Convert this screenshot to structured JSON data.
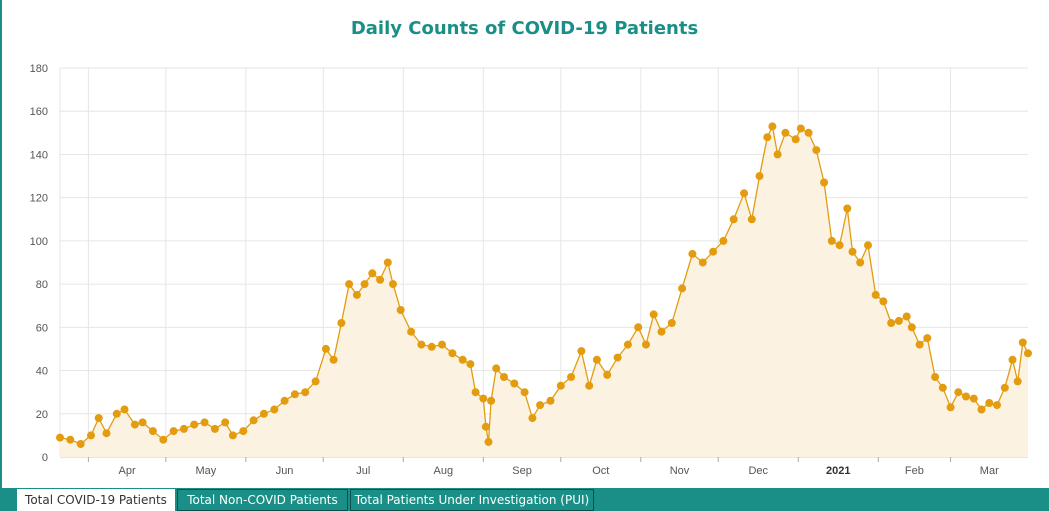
{
  "chart_data": {
    "type": "line",
    "title": "Daily Counts of COVID-19 Patients",
    "ylim": [
      0,
      180
    ],
    "yticks": [
      0,
      20,
      40,
      60,
      80,
      100,
      120,
      140,
      160,
      180
    ],
    "xlim": [
      "2020-03-21",
      "2021-03-31"
    ],
    "month_ticks": [
      {
        "date": "2020-04-01",
        "label": "Apr",
        "bold": false
      },
      {
        "date": "2020-05-01",
        "label": "May",
        "bold": false
      },
      {
        "date": "2020-06-01",
        "label": "Jun",
        "bold": false
      },
      {
        "date": "2020-07-01",
        "label": "Jul",
        "bold": false
      },
      {
        "date": "2020-08-01",
        "label": "Aug",
        "bold": false
      },
      {
        "date": "2020-09-01",
        "label": "Sep",
        "bold": false
      },
      {
        "date": "2020-10-01",
        "label": "Oct",
        "bold": false
      },
      {
        "date": "2020-11-01",
        "label": "Nov",
        "bold": false
      },
      {
        "date": "2020-12-01",
        "label": "Dec",
        "bold": false
      },
      {
        "date": "2021-01-01",
        "label": "2021",
        "bold": true
      },
      {
        "date": "2021-02-01",
        "label": "Feb",
        "bold": false
      },
      {
        "date": "2021-03-01",
        "label": "Mar",
        "bold": false
      }
    ],
    "colors": {
      "line": "#e39c0f",
      "marker": "#e39c0f",
      "fill": "#fcf2e1",
      "grid": "#e6e6e6"
    },
    "series": [
      {
        "points": [
          [
            "2020-03-21",
            9
          ],
          [
            "2020-03-25",
            8
          ],
          [
            "2020-03-29",
            6
          ],
          [
            "2020-04-02",
            10
          ],
          [
            "2020-04-05",
            18
          ],
          [
            "2020-04-08",
            11
          ],
          [
            "2020-04-12",
            20
          ],
          [
            "2020-04-15",
            22
          ],
          [
            "2020-04-19",
            15
          ],
          [
            "2020-04-22",
            16
          ],
          [
            "2020-04-26",
            12
          ],
          [
            "2020-04-30",
            8
          ],
          [
            "2020-05-04",
            12
          ],
          [
            "2020-05-08",
            13
          ],
          [
            "2020-05-12",
            15
          ],
          [
            "2020-05-16",
            16
          ],
          [
            "2020-05-20",
            13
          ],
          [
            "2020-05-24",
            16
          ],
          [
            "2020-05-27",
            10
          ],
          [
            "2020-05-31",
            12
          ],
          [
            "2020-06-04",
            17
          ],
          [
            "2020-06-08",
            20
          ],
          [
            "2020-06-12",
            22
          ],
          [
            "2020-06-16",
            26
          ],
          [
            "2020-06-20",
            29
          ],
          [
            "2020-06-24",
            30
          ],
          [
            "2020-06-28",
            35
          ],
          [
            "2020-07-02",
            50
          ],
          [
            "2020-07-05",
            45
          ],
          [
            "2020-07-08",
            62
          ],
          [
            "2020-07-11",
            80
          ],
          [
            "2020-07-14",
            75
          ],
          [
            "2020-07-17",
            80
          ],
          [
            "2020-07-20",
            85
          ],
          [
            "2020-07-23",
            82
          ],
          [
            "2020-07-26",
            90
          ],
          [
            "2020-07-28",
            80
          ],
          [
            "2020-07-31",
            68
          ],
          [
            "2020-08-04",
            58
          ],
          [
            "2020-08-08",
            52
          ],
          [
            "2020-08-12",
            51
          ],
          [
            "2020-08-16",
            52
          ],
          [
            "2020-08-20",
            48
          ],
          [
            "2020-08-24",
            45
          ],
          [
            "2020-08-27",
            43
          ],
          [
            "2020-08-29",
            30
          ],
          [
            "2020-09-01",
            27
          ],
          [
            "2020-09-02",
            14
          ],
          [
            "2020-09-03",
            7
          ],
          [
            "2020-09-04",
            26
          ],
          [
            "2020-09-06",
            41
          ],
          [
            "2020-09-09",
            37
          ],
          [
            "2020-09-13",
            34
          ],
          [
            "2020-09-17",
            30
          ],
          [
            "2020-09-20",
            18
          ],
          [
            "2020-09-23",
            24
          ],
          [
            "2020-09-27",
            26
          ],
          [
            "2020-10-01",
            33
          ],
          [
            "2020-10-05",
            37
          ],
          [
            "2020-10-09",
            49
          ],
          [
            "2020-10-12",
            33
          ],
          [
            "2020-10-15",
            45
          ],
          [
            "2020-10-19",
            38
          ],
          [
            "2020-10-23",
            46
          ],
          [
            "2020-10-27",
            52
          ],
          [
            "2020-10-31",
            60
          ],
          [
            "2020-11-03",
            52
          ],
          [
            "2020-11-06",
            66
          ],
          [
            "2020-11-09",
            58
          ],
          [
            "2020-11-13",
            62
          ],
          [
            "2020-11-17",
            78
          ],
          [
            "2020-11-21",
            94
          ],
          [
            "2020-11-25",
            90
          ],
          [
            "2020-11-29",
            95
          ],
          [
            "2020-12-03",
            100
          ],
          [
            "2020-12-07",
            110
          ],
          [
            "2020-12-11",
            122
          ],
          [
            "2020-12-14",
            110
          ],
          [
            "2020-12-17",
            130
          ],
          [
            "2020-12-20",
            148
          ],
          [
            "2020-12-22",
            153
          ],
          [
            "2020-12-24",
            140
          ],
          [
            "2020-12-27",
            150
          ],
          [
            "2020-12-31",
            147
          ],
          [
            "2021-01-02",
            152
          ],
          [
            "2021-01-05",
            150
          ],
          [
            "2021-01-08",
            142
          ],
          [
            "2021-01-11",
            127
          ],
          [
            "2021-01-14",
            100
          ],
          [
            "2021-01-17",
            98
          ],
          [
            "2021-01-20",
            115
          ],
          [
            "2021-01-22",
            95
          ],
          [
            "2021-01-25",
            90
          ],
          [
            "2021-01-28",
            98
          ],
          [
            "2021-01-31",
            75
          ],
          [
            "2021-02-03",
            72
          ],
          [
            "2021-02-06",
            62
          ],
          [
            "2021-02-09",
            63
          ],
          [
            "2021-02-12",
            65
          ],
          [
            "2021-02-14",
            60
          ],
          [
            "2021-02-17",
            52
          ],
          [
            "2021-02-20",
            55
          ],
          [
            "2021-02-23",
            37
          ],
          [
            "2021-02-26",
            32
          ],
          [
            "2021-03-01",
            23
          ],
          [
            "2021-03-04",
            30
          ],
          [
            "2021-03-07",
            28
          ],
          [
            "2021-03-10",
            27
          ],
          [
            "2021-03-13",
            22
          ],
          [
            "2021-03-16",
            25
          ],
          [
            "2021-03-19",
            24
          ],
          [
            "2021-03-22",
            32
          ],
          [
            "2021-03-25",
            45
          ],
          [
            "2021-03-27",
            35
          ],
          [
            "2021-03-29",
            53
          ],
          [
            "2021-03-31",
            48
          ]
        ]
      }
    ]
  },
  "tabs": [
    {
      "label": "Total COVID-19 Patients",
      "active": true
    },
    {
      "label": "Total Non-COVID Patients",
      "active": false
    },
    {
      "label": "Total Patients Under Investigation (PUI)",
      "active": false
    }
  ]
}
